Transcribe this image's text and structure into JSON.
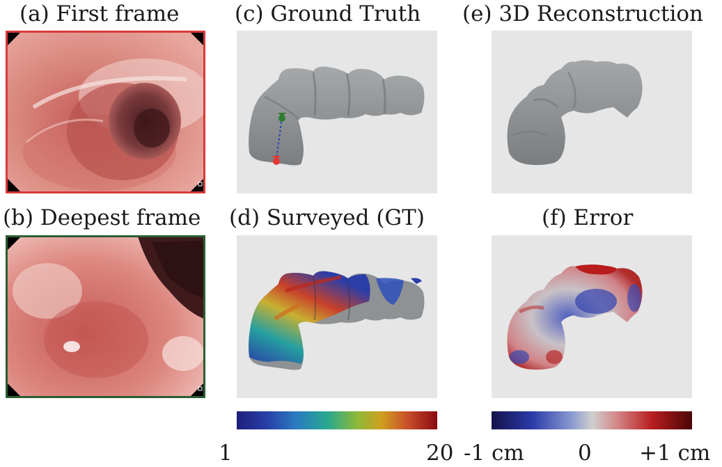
{
  "captions": {
    "a": "(a) First frame",
    "b": "(b) Deepest frame",
    "c": "(c) Ground Truth",
    "d": "(d) Surveyed (GT)",
    "e": "(e) 3D Reconstruction",
    "f": "(f) Error"
  },
  "colorbars": {
    "survey": {
      "min_label": "1",
      "max_label": "20"
    },
    "error": {
      "min_label": "-1 cm",
      "mid_label": "0",
      "max_label": "+1 cm"
    }
  },
  "colors": {
    "first_frame_border": "#d93a3a",
    "deepest_frame_border": "#2b5e33",
    "render_background": "#e6e6e6",
    "mesh_gray": "#8d9092"
  }
}
